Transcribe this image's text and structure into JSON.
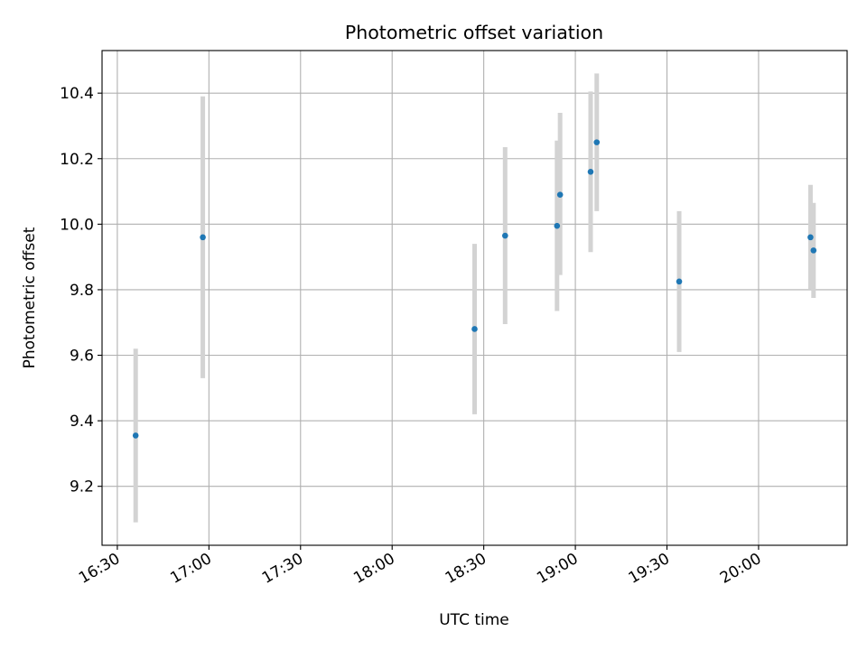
{
  "chart_data": {
    "type": "scatter",
    "title": "Photometric offset variation",
    "xlabel": "UTC time",
    "ylabel": "Photometric offset",
    "xlim": [
      "16:25",
      "20:29"
    ],
    "ylim": [
      9.02,
      10.53
    ],
    "x_ticks": [
      "16:30",
      "17:00",
      "17:30",
      "18:00",
      "18:30",
      "19:00",
      "19:30",
      "20:00"
    ],
    "y_ticks": [
      "9.2",
      "9.4",
      "9.6",
      "9.8",
      "10.0",
      "10.2",
      "10.4"
    ],
    "grid": true,
    "colors": {
      "points": "#1f77b4",
      "error_bars": "#d3d3d3",
      "grid": "#b0b0b0"
    },
    "points": [
      {
        "x": "16:36",
        "y": 9.355,
        "yerr_low": 9.09,
        "yerr_high": 9.62
      },
      {
        "x": "16:58",
        "y": 9.96,
        "yerr_low": 9.53,
        "yerr_high": 10.39
      },
      {
        "x": "18:27",
        "y": 9.68,
        "yerr_low": 9.42,
        "yerr_high": 9.94
      },
      {
        "x": "18:37",
        "y": 9.965,
        "yerr_low": 9.695,
        "yerr_high": 10.235
      },
      {
        "x": "18:54",
        "y": 9.995,
        "yerr_low": 9.735,
        "yerr_high": 10.255
      },
      {
        "x": "18:55",
        "y": 10.09,
        "yerr_low": 9.845,
        "yerr_high": 10.34
      },
      {
        "x": "19:05",
        "y": 10.16,
        "yerr_low": 9.915,
        "yerr_high": 10.405
      },
      {
        "x": "19:07",
        "y": 10.25,
        "yerr_low": 10.04,
        "yerr_high": 10.46
      },
      {
        "x": "19:34",
        "y": 9.825,
        "yerr_low": 9.61,
        "yerr_high": 10.04
      },
      {
        "x": "20:17",
        "y": 9.96,
        "yerr_low": 9.8,
        "yerr_high": 10.12
      },
      {
        "x": "20:18",
        "y": 9.92,
        "yerr_low": 9.775,
        "yerr_high": 10.065
      }
    ]
  }
}
